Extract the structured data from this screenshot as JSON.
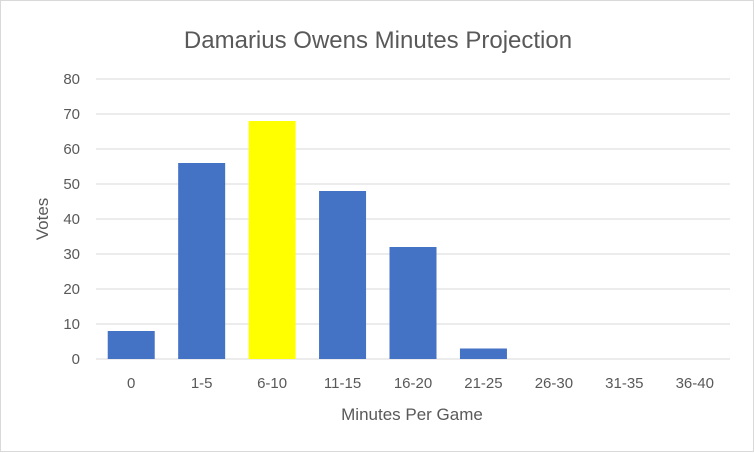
{
  "chart_data": {
    "type": "bar",
    "title": "Damarius Owens Minutes Projection",
    "xlabel": "Minutes Per Game",
    "ylabel": "Votes",
    "categories": [
      "0",
      "1-5",
      "6-10",
      "11-15",
      "16-20",
      "21-25",
      "26-30",
      "31-35",
      "36-40"
    ],
    "values": [
      8,
      56,
      68,
      48,
      32,
      3,
      0,
      0,
      0
    ],
    "ylim": [
      0,
      80
    ],
    "yticks": [
      0,
      10,
      20,
      30,
      40,
      50,
      60,
      70,
      80
    ],
    "grid": true,
    "legend": "none",
    "highlight_category": "6-10",
    "colors": {
      "bar": "#4472c4",
      "highlight": "#ffff00",
      "grid": "#d9d9d9",
      "text": "#595959"
    }
  }
}
